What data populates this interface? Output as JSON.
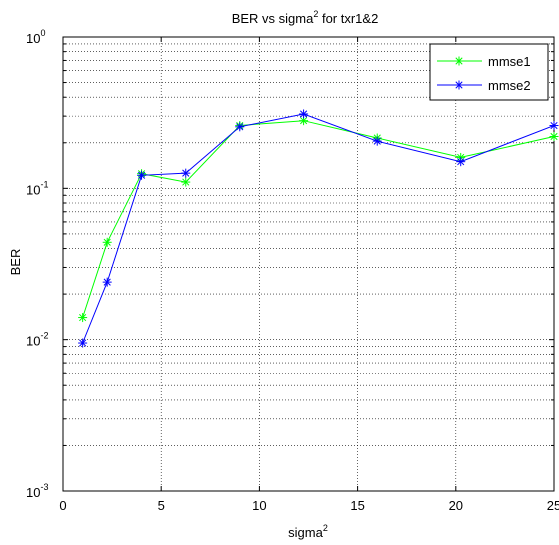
{
  "chart_data": {
    "type": "line",
    "title": {
      "text": "BER vs sigma",
      "sup": "2",
      "suffix": " for txr1&2"
    },
    "xlabel": {
      "text": "sigma",
      "sup": "2"
    },
    "ylabel": "BER",
    "xlim": [
      0,
      25
    ],
    "ylim": [
      0.001,
      1
    ],
    "yscale": "log",
    "grid": true,
    "legend_position": "top-right",
    "x_ticks": [
      0,
      5,
      10,
      15,
      20,
      25
    ],
    "y_ticks": [
      {
        "value": 0.001,
        "base": "10",
        "exp": "-3"
      },
      {
        "value": 0.01,
        "base": "10",
        "exp": "-2"
      },
      {
        "value": 0.1,
        "base": "10",
        "exp": "-1"
      },
      {
        "value": 1,
        "base": "10",
        "exp": "0"
      }
    ],
    "x": [
      1,
      2.25,
      4,
      6.25,
      9,
      12.25,
      16,
      20.25,
      25
    ],
    "series": [
      {
        "name": "mmse1",
        "color": "#00ff00",
        "marker": "asterisk",
        "values": [
          0.014,
          0.044,
          0.125,
          0.11,
          0.26,
          0.28,
          0.215,
          0.16,
          0.22
        ]
      },
      {
        "name": "mmse2",
        "color": "#0000ff",
        "marker": "asterisk",
        "values": [
          0.0095,
          0.024,
          0.122,
          0.126,
          0.255,
          0.31,
          0.205,
          0.15,
          0.26
        ]
      }
    ]
  }
}
